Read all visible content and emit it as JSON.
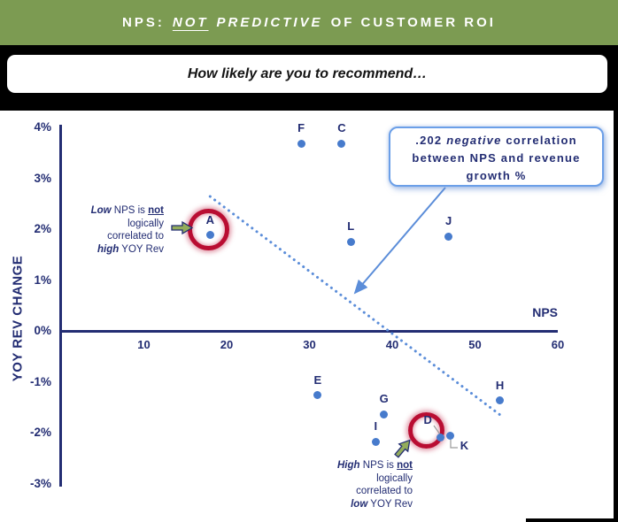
{
  "header": {
    "prefix": "NPS:",
    "not_word": "NOT",
    "predictive_word": "PREDICTIVE",
    "suffix": "OF CUSTOMER ROI",
    "bg_color": "#7C9B52",
    "text_color": "#FFFFFF"
  },
  "question_banner": {
    "text": "How likely are you to recommend…"
  },
  "callout": {
    "line1_pre": ".202 ",
    "line1_em": "negative",
    "line1_post": " correlation",
    "line2": "between NPS and revenue",
    "line3": "growth %"
  },
  "left_note": {
    "lead_italic": "Low",
    "seg1": " NPS is ",
    "not_word": "not",
    "line2": "logically",
    "line3": "correlated to",
    "tail_italic": "high",
    "seg2": " YOY Rev"
  },
  "right_note": {
    "lead_italic": "High",
    "seg1": " NPS is ",
    "not_word": "not",
    "line2": "logically",
    "line3": "correlated to",
    "tail_italic": "low",
    "seg2": " YOY Rev"
  },
  "chart_data": {
    "type": "scatter",
    "xlabel": "NPS",
    "ylabel": "YOY REV CHANGE",
    "xlim": [
      0,
      60
    ],
    "ylim": [
      -3,
      4
    ],
    "x_ticks": [
      10,
      20,
      30,
      40,
      50,
      60
    ],
    "y_ticks": [
      "4%",
      "3%",
      "2%",
      "1%",
      "0%",
      "-1%",
      "-2%",
      "-3%"
    ],
    "y_tick_values": [
      4,
      3,
      2,
      1,
      0,
      -1,
      -2,
      -3
    ],
    "grid": false,
    "points": [
      {
        "label": "A",
        "nps": 18,
        "yoy_pct": 1.9
      },
      {
        "label": "C",
        "nps": 33.9,
        "yoy_pct": 3.7
      },
      {
        "label": "D",
        "nps": 45.8,
        "yoy_pct": -2.07
      },
      {
        "label": "E",
        "nps": 31,
        "yoy_pct": -1.25
      },
      {
        "label": "F",
        "nps": 29,
        "yoy_pct": 3.7
      },
      {
        "label": "G",
        "nps": 39,
        "yoy_pct": -1.62
      },
      {
        "label": "H",
        "nps": 53,
        "yoy_pct": -1.35
      },
      {
        "label": "I",
        "nps": 38,
        "yoy_pct": -2.16
      },
      {
        "label": "J",
        "nps": 46.8,
        "yoy_pct": 1.87
      },
      {
        "label": "K",
        "nps": 47,
        "yoy_pct": -2.05
      },
      {
        "label": "L",
        "nps": 35,
        "yoy_pct": 1.77
      }
    ],
    "circled_points": [
      "A",
      "D"
    ],
    "trendline": {
      "style": "dotted",
      "x1": 18,
      "y1": 2.66,
      "x2": 53,
      "y2": -1.63,
      "correlation": ".202 negative"
    },
    "colors": {
      "axis": "#232D73",
      "point": "#477BCC",
      "trend": "#5B8DD9",
      "highlight_ring": "#B90D32",
      "block_arrow": "#93AC5B",
      "header_green": "#7C9B52"
    }
  }
}
